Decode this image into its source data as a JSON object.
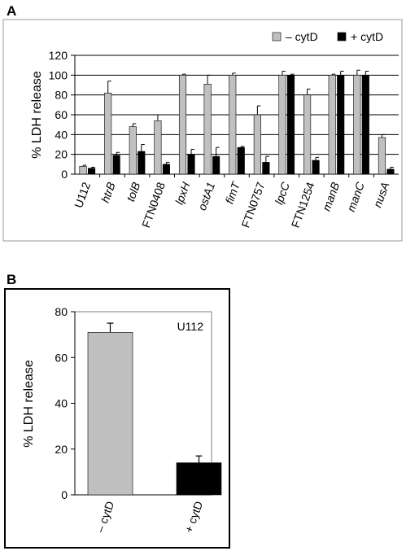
{
  "panels": {
    "a_label": "A",
    "b_label": "B"
  },
  "chart_data": [
    {
      "type": "bar",
      "panel": "A",
      "ylabel": "% LDH release",
      "ylim": [
        0,
        120
      ],
      "yticks": [
        0,
        20,
        40,
        60,
        80,
        100,
        120
      ],
      "grid": true,
      "legend_position": "top-right",
      "categories": [
        "U112",
        "htrB",
        "tolB",
        "FTN0408",
        "lpxH",
        "ostA1",
        "fimT",
        "FTN0757",
        "lpcC",
        "FTN1254",
        "manB",
        "manC",
        "nusA"
      ],
      "italic_categories": [
        "htrB",
        "tolB",
        "lpxH",
        "ostA1",
        "fimT",
        "lpcC",
        "manB",
        "manC",
        "nusA"
      ],
      "series": [
        {
          "name": "– cytD",
          "color": "#c0c0c0",
          "values": [
            8,
            82,
            48,
            54,
            100,
            91,
            100,
            60,
            100,
            80,
            100,
            100,
            37
          ],
          "errors": [
            1,
            12,
            3,
            6,
            1,
            9,
            2,
            9,
            4,
            6,
            1,
            5,
            3
          ]
        },
        {
          "name": "+ cytD",
          "color": "#000000",
          "values": [
            6,
            19,
            23,
            10,
            20,
            18,
            27,
            12,
            100,
            14,
            100,
            100,
            5
          ],
          "errors": [
            1,
            3,
            7,
            2,
            5,
            9,
            1,
            6,
            1,
            3,
            4,
            4,
            2
          ]
        }
      ]
    },
    {
      "type": "bar",
      "panel": "B",
      "ylabel": "% LDH release",
      "ylim": [
        0,
        80
      ],
      "yticks": [
        0,
        20,
        40,
        60,
        80
      ],
      "annotation": "U112",
      "categories": [
        "– cytD",
        "+ cytD"
      ],
      "colors": [
        "#c0c0c0",
        "#000000"
      ],
      "values": [
        71,
        14
      ],
      "errors": [
        4,
        3
      ]
    }
  ]
}
